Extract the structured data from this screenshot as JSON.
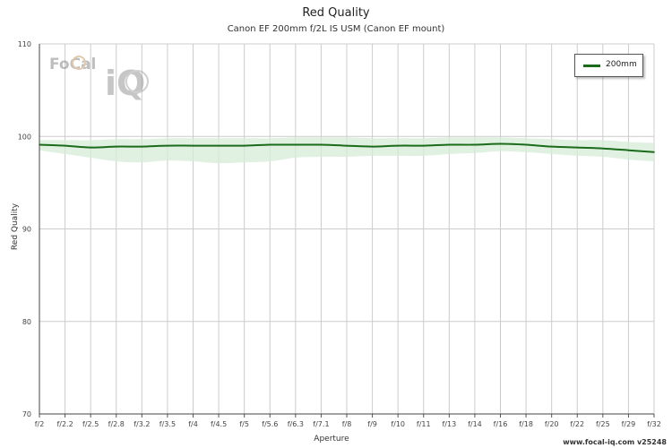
{
  "header": {
    "title": "Red Quality",
    "subtitle": "Canon EF 200mm f/2L IS USM (Canon EF mount)"
  },
  "footer": {
    "credit": "www.focal-iq.com  v25248"
  },
  "logo": {
    "text_focal": "FoCal",
    "text_iq": "iQ"
  },
  "colors": {
    "line": "#1a6b1a",
    "band": "#d7ecd7",
    "grid": "#cccccc"
  },
  "chart_data": {
    "type": "line",
    "title": "Red Quality",
    "subtitle": "Canon EF 200mm f/2L IS USM (Canon EF mount)",
    "xlabel": "Aperture",
    "ylabel": "Red Quality",
    "ylim": [
      70,
      110
    ],
    "yticks": [
      70,
      80,
      90,
      100,
      110
    ],
    "grid": true,
    "legend_position": "top-right",
    "categories": [
      "f/2",
      "f/2.2",
      "f/2.5",
      "f/2.8",
      "f/3.2",
      "f/3.5",
      "f/4",
      "f/4.5",
      "f/5",
      "f/5.6",
      "f/6.3",
      "f/7.1",
      "f/8",
      "f/9",
      "f/10",
      "f/11",
      "f/13",
      "f/14",
      "f/16",
      "f/18",
      "f/20",
      "f/22",
      "f/25",
      "f/29",
      "f/32"
    ],
    "series": [
      {
        "name": "200mm",
        "values": [
          99.1,
          99.0,
          98.8,
          98.9,
          98.9,
          99.0,
          99.0,
          99.0,
          99.0,
          99.1,
          99.1,
          99.1,
          99.0,
          98.9,
          99.0,
          99.0,
          99.1,
          99.1,
          99.2,
          99.1,
          98.9,
          98.8,
          98.7,
          98.5,
          98.3
        ],
        "band_low": [
          98.5,
          98.1,
          97.7,
          97.3,
          97.2,
          97.4,
          97.3,
          97.1,
          97.2,
          97.3,
          97.7,
          97.8,
          97.8,
          97.9,
          97.9,
          97.9,
          98.1,
          98.2,
          98.4,
          98.3,
          98.1,
          97.9,
          97.8,
          97.5,
          97.3
        ],
        "band_high": [
          99.6,
          99.6,
          99.6,
          99.7,
          99.7,
          99.8,
          99.8,
          99.8,
          99.8,
          99.8,
          99.9,
          99.9,
          99.9,
          99.8,
          99.8,
          99.8,
          99.9,
          99.9,
          99.9,
          99.8,
          99.7,
          99.6,
          99.6,
          99.4,
          99.3
        ]
      }
    ]
  }
}
